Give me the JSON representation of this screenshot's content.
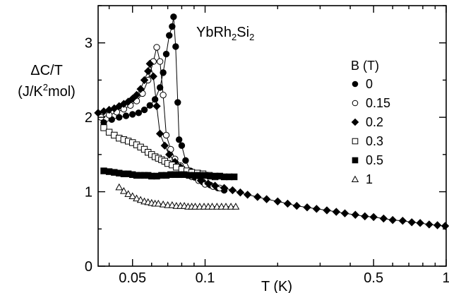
{
  "chart_data": {
    "type": "scatter",
    "title": "",
    "annotation": {
      "base": "YbRh",
      "sub1": "2",
      "mid": "Si",
      "sub2": "2"
    },
    "ylabel": {
      "line1": "ΔC/T",
      "line2_pre": "(J/K",
      "line2_sup": "2",
      "line2_post": "mol)"
    },
    "xlabel": "T (K)",
    "x_scale": "log",
    "xlim": [
      0.036,
      1.0
    ],
    "ylim": [
      0,
      3.5
    ],
    "x_ticks": [
      {
        "value": 0.05,
        "label": "0.05"
      },
      {
        "value": 0.1,
        "label": "0.1"
      },
      {
        "value": 0.5,
        "label": "0.5"
      },
      {
        "value": 1.0,
        "label": "1"
      }
    ],
    "x_minor_ticks": [
      0.04,
      0.06,
      0.07,
      0.08,
      0.09,
      0.2,
      0.3,
      0.4,
      0.6,
      0.7,
      0.8,
      0.9
    ],
    "y_ticks": [
      {
        "value": 0,
        "label": "0"
      },
      {
        "value": 1,
        "label": "1"
      },
      {
        "value": 2,
        "label": "2"
      },
      {
        "value": 3,
        "label": "3"
      }
    ],
    "y_minor_ticks": [
      0.5,
      1.5,
      2.5,
      3.5
    ],
    "grid": false,
    "legend": {
      "title": "B (T)",
      "placement": "right"
    },
    "series": [
      {
        "name": "0",
        "marker": "filled-circle",
        "connected": true,
        "points": [
          [
            0.038,
            1.93
          ],
          [
            0.041,
            1.97
          ],
          [
            0.044,
            2.0
          ],
          [
            0.047,
            2.02
          ],
          [
            0.05,
            2.04
          ],
          [
            0.053,
            2.06
          ],
          [
            0.056,
            2.1
          ],
          [
            0.059,
            2.16
          ],
          [
            0.062,
            2.24
          ],
          [
            0.065,
            2.4
          ],
          [
            0.067,
            2.6
          ],
          [
            0.069,
            2.85
          ],
          [
            0.071,
            3.1
          ],
          [
            0.073,
            3.22
          ],
          [
            0.074,
            3.35
          ],
          [
            0.0755,
            2.95
          ],
          [
            0.077,
            2.2
          ],
          [
            0.078,
            1.7
          ],
          [
            0.08,
            1.62
          ],
          [
            0.083,
            1.42
          ],
          [
            0.087,
            1.28
          ],
          [
            0.092,
            1.19
          ],
          [
            0.098,
            1.13
          ],
          [
            0.105,
            1.09
          ],
          [
            0.113,
            1.05
          ],
          [
            0.12,
            1.02
          ]
        ]
      },
      {
        "name": "0.15",
        "marker": "open-circle",
        "connected": true,
        "points": [
          [
            0.037,
            2.0
          ],
          [
            0.04,
            2.03
          ],
          [
            0.043,
            2.07
          ],
          [
            0.046,
            2.11
          ],
          [
            0.049,
            2.16
          ],
          [
            0.052,
            2.22
          ],
          [
            0.055,
            2.32
          ],
          [
            0.058,
            2.5
          ],
          [
            0.061,
            2.75
          ],
          [
            0.063,
            2.94
          ],
          [
            0.065,
            2.75
          ],
          [
            0.067,
            2.3
          ],
          [
            0.069,
            1.76
          ],
          [
            0.072,
            1.57
          ],
          [
            0.075,
            1.44
          ],
          [
            0.079,
            1.35
          ],
          [
            0.083,
            1.27
          ],
          [
            0.088,
            1.2
          ],
          [
            0.094,
            1.15
          ],
          [
            0.1,
            1.1
          ],
          [
            0.108,
            1.07
          ],
          [
            0.115,
            1.05
          ]
        ]
      },
      {
        "name": "0.2",
        "marker": "filled-diamond",
        "connected": true,
        "points": [
          [
            0.036,
            2.06
          ],
          [
            0.038,
            2.08
          ],
          [
            0.04,
            2.1
          ],
          [
            0.042,
            2.12
          ],
          [
            0.044,
            2.15
          ],
          [
            0.046,
            2.18
          ],
          [
            0.048,
            2.21
          ],
          [
            0.05,
            2.25
          ],
          [
            0.052,
            2.3
          ],
          [
            0.054,
            2.38
          ],
          [
            0.056,
            2.5
          ],
          [
            0.058,
            2.62
          ],
          [
            0.059,
            2.72
          ],
          [
            0.061,
            2.55
          ],
          [
            0.063,
            2.15
          ],
          [
            0.065,
            1.78
          ],
          [
            0.068,
            1.62
          ],
          [
            0.071,
            1.5
          ],
          [
            0.075,
            1.4
          ],
          [
            0.079,
            1.33
          ],
          [
            0.084,
            1.26
          ],
          [
            0.09,
            1.2
          ],
          [
            0.096,
            1.15
          ],
          [
            0.103,
            1.11
          ],
          [
            0.11,
            1.08
          ],
          [
            0.12,
            1.05
          ],
          [
            0.13,
            1.02
          ],
          [
            0.14,
            0.99
          ],
          [
            0.15,
            0.96
          ],
          [
            0.165,
            0.93
          ],
          [
            0.18,
            0.9
          ],
          [
            0.2,
            0.87
          ],
          [
            0.22,
            0.84
          ],
          [
            0.24,
            0.81
          ],
          [
            0.265,
            0.79
          ],
          [
            0.29,
            0.77
          ],
          [
            0.32,
            0.75
          ],
          [
            0.35,
            0.73
          ],
          [
            0.38,
            0.71
          ],
          [
            0.42,
            0.69
          ],
          [
            0.46,
            0.67
          ],
          [
            0.5,
            0.66
          ],
          [
            0.55,
            0.64
          ],
          [
            0.6,
            0.62
          ],
          [
            0.66,
            0.61
          ],
          [
            0.72,
            0.59
          ],
          [
            0.78,
            0.58
          ],
          [
            0.85,
            0.56
          ],
          [
            0.92,
            0.55
          ],
          [
            0.99,
            0.54
          ]
        ]
      },
      {
        "name": "0.3",
        "marker": "open-square",
        "connected": true,
        "points": [
          [
            0.038,
            1.86
          ],
          [
            0.04,
            1.8
          ],
          [
            0.042,
            1.76
          ],
          [
            0.044,
            1.72
          ],
          [
            0.046,
            1.7
          ],
          [
            0.048,
            1.68
          ],
          [
            0.05,
            1.66
          ],
          [
            0.052,
            1.63
          ],
          [
            0.054,
            1.6
          ],
          [
            0.056,
            1.57
          ],
          [
            0.058,
            1.53
          ],
          [
            0.06,
            1.5
          ],
          [
            0.062,
            1.47
          ],
          [
            0.064,
            1.45
          ],
          [
            0.066,
            1.43
          ],
          [
            0.068,
            1.41
          ],
          [
            0.07,
            1.38
          ],
          [
            0.073,
            1.36
          ],
          [
            0.076,
            1.33
          ],
          [
            0.08,
            1.3
          ],
          [
            0.084,
            1.28
          ],
          [
            0.088,
            1.26
          ],
          [
            0.093,
            1.25
          ],
          [
            0.098,
            1.24
          ],
          [
            0.104,
            1.22
          ],
          [
            0.11,
            1.2
          ]
        ]
      },
      {
        "name": "0.5",
        "marker": "filled-square",
        "connected": true,
        "points": [
          [
            0.038,
            1.28
          ],
          [
            0.04,
            1.27
          ],
          [
            0.042,
            1.26
          ],
          [
            0.044,
            1.25
          ],
          [
            0.046,
            1.24
          ],
          [
            0.048,
            1.24
          ],
          [
            0.05,
            1.23
          ],
          [
            0.052,
            1.22
          ],
          [
            0.054,
            1.22
          ],
          [
            0.056,
            1.22
          ],
          [
            0.058,
            1.22
          ],
          [
            0.06,
            1.21
          ],
          [
            0.063,
            1.21
          ],
          [
            0.066,
            1.22
          ],
          [
            0.069,
            1.22
          ],
          [
            0.072,
            1.23
          ],
          [
            0.075,
            1.23
          ],
          [
            0.078,
            1.23
          ],
          [
            0.082,
            1.23
          ],
          [
            0.086,
            1.22
          ],
          [
            0.09,
            1.22
          ],
          [
            0.095,
            1.22
          ],
          [
            0.1,
            1.22
          ],
          [
            0.105,
            1.21
          ],
          [
            0.11,
            1.21
          ],
          [
            0.115,
            1.21
          ],
          [
            0.12,
            1.2
          ],
          [
            0.126,
            1.2
          ],
          [
            0.132,
            1.2
          ]
        ]
      },
      {
        "name": "1",
        "marker": "open-triangle",
        "connected": true,
        "points": [
          [
            0.044,
            1.06
          ],
          [
            0.046,
            1.01
          ],
          [
            0.048,
            0.97
          ],
          [
            0.05,
            0.94
          ],
          [
            0.052,
            0.91
          ],
          [
            0.054,
            0.89
          ],
          [
            0.056,
            0.87
          ],
          [
            0.058,
            0.86
          ],
          [
            0.06,
            0.85
          ],
          [
            0.062,
            0.84
          ],
          [
            0.064,
            0.84
          ],
          [
            0.067,
            0.83
          ],
          [
            0.07,
            0.82
          ],
          [
            0.073,
            0.82
          ],
          [
            0.076,
            0.81
          ],
          [
            0.079,
            0.81
          ],
          [
            0.082,
            0.81
          ],
          [
            0.085,
            0.8
          ],
          [
            0.088,
            0.8
          ],
          [
            0.091,
            0.8
          ],
          [
            0.095,
            0.8
          ],
          [
            0.099,
            0.8
          ],
          [
            0.103,
            0.8
          ],
          [
            0.107,
            0.8
          ],
          [
            0.112,
            0.8
          ],
          [
            0.117,
            0.8
          ],
          [
            0.122,
            0.8
          ],
          [
            0.128,
            0.8
          ],
          [
            0.134,
            0.8
          ]
        ]
      }
    ]
  }
}
